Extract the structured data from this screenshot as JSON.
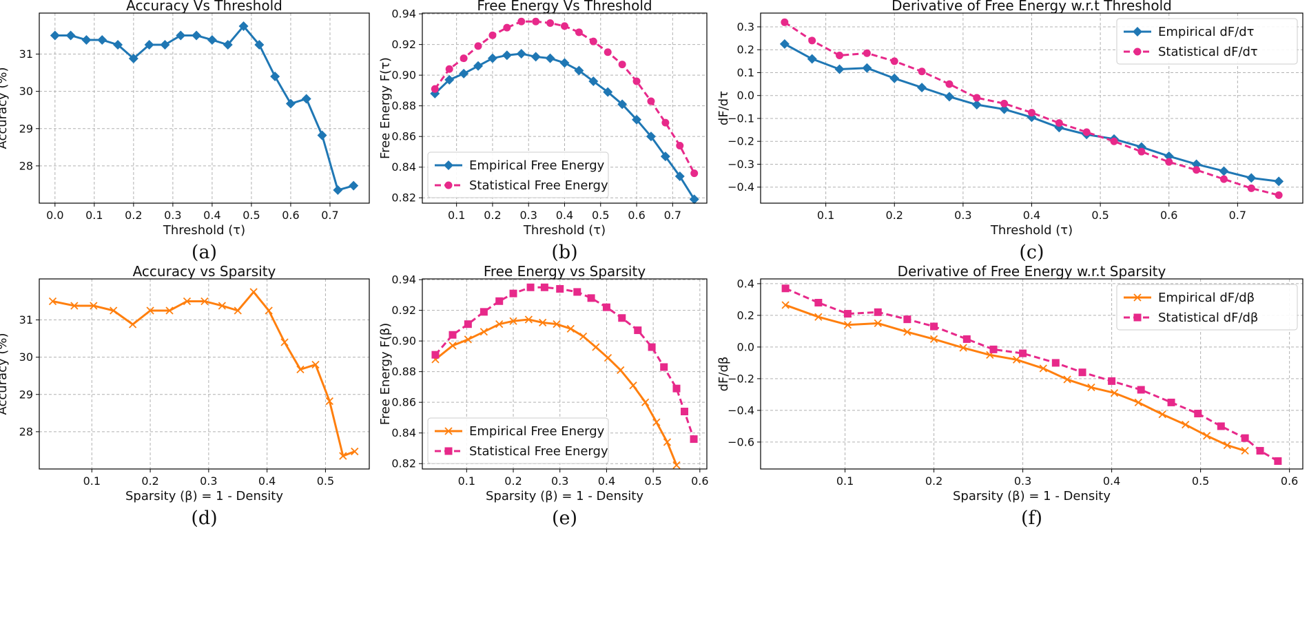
{
  "colors": {
    "blue": "#1f77b4",
    "orange": "#ff7f0e",
    "pink": "#e7298a"
  },
  "chart_data": [
    {
      "id": "a",
      "type": "line",
      "title": "Accuracy Vs Threshold",
      "xlabel": "Threshold (τ)",
      "ylabel": "Accuracy (%)",
      "sublabel": "(a)",
      "xlim": [
        -0.04,
        0.8
      ],
      "ylim": [
        27.0,
        32.1
      ],
      "xticks": [
        0.0,
        0.1,
        0.2,
        0.3,
        0.4,
        0.5,
        0.6,
        0.7
      ],
      "xtick_labels": [
        "0.0",
        "0.1",
        "0.2",
        "0.3",
        "0.4",
        "0.5",
        "0.6",
        "0.7"
      ],
      "yticks": [
        28,
        29,
        30,
        31
      ],
      "ytick_labels": [
        "28",
        "29",
        "30",
        "31"
      ],
      "legend": null,
      "series": [
        {
          "name": "Accuracy",
          "color": "blue",
          "dash": false,
          "marker": "diamond",
          "x": [
            0.0,
            0.04,
            0.08,
            0.12,
            0.16,
            0.2,
            0.24,
            0.28,
            0.32,
            0.36,
            0.4,
            0.44,
            0.48,
            0.52,
            0.56,
            0.6,
            0.64,
            0.68,
            0.72,
            0.76
          ],
          "y": [
            31.5,
            31.5,
            31.38,
            31.38,
            31.25,
            30.88,
            31.25,
            31.25,
            31.5,
            31.5,
            31.38,
            31.25,
            31.75,
            31.25,
            30.4,
            29.67,
            29.8,
            28.82,
            27.35,
            27.47
          ]
        }
      ]
    },
    {
      "id": "b",
      "type": "line",
      "title": "Free Energy Vs Threshold",
      "xlabel": "Threshold (τ)",
      "ylabel": "Free Energy F(τ)",
      "sublabel": "(b)",
      "xlim": [
        0.005,
        0.795
      ],
      "ylim": [
        0.8165,
        0.9405
      ],
      "xticks": [
        0.1,
        0.2,
        0.3,
        0.4,
        0.5,
        0.6,
        0.7
      ],
      "xtick_labels": [
        "0.1",
        "0.2",
        "0.3",
        "0.4",
        "0.5",
        "0.6",
        "0.7"
      ],
      "yticks": [
        0.82,
        0.84,
        0.86,
        0.88,
        0.9,
        0.92,
        0.94
      ],
      "ytick_labels": [
        "0.82",
        "0.84",
        "0.86",
        "0.88",
        "0.90",
        "0.92",
        "0.94"
      ],
      "legend": "lower-left",
      "series": [
        {
          "name": "Empirical Free Energy",
          "color": "blue",
          "dash": false,
          "marker": "diamond",
          "x": [
            0.04,
            0.08,
            0.12,
            0.16,
            0.2,
            0.24,
            0.28,
            0.32,
            0.36,
            0.4,
            0.44,
            0.48,
            0.52,
            0.56,
            0.6,
            0.64,
            0.68,
            0.72,
            0.76
          ],
          "y": [
            0.888,
            0.897,
            0.901,
            0.906,
            0.911,
            0.913,
            0.914,
            0.912,
            0.911,
            0.908,
            0.903,
            0.896,
            0.889,
            0.881,
            0.871,
            0.86,
            0.847,
            0.834,
            0.819
          ]
        },
        {
          "name": "Statistical Free Energy",
          "color": "pink",
          "dash": true,
          "marker": "circle",
          "x": [
            0.04,
            0.08,
            0.12,
            0.16,
            0.2,
            0.24,
            0.28,
            0.32,
            0.36,
            0.4,
            0.44,
            0.48,
            0.52,
            0.56,
            0.6,
            0.64,
            0.68,
            0.72,
            0.76
          ],
          "y": [
            0.891,
            0.904,
            0.911,
            0.919,
            0.926,
            0.931,
            0.935,
            0.935,
            0.934,
            0.932,
            0.928,
            0.922,
            0.915,
            0.907,
            0.896,
            0.883,
            0.869,
            0.854,
            0.836
          ]
        }
      ]
    },
    {
      "id": "c",
      "type": "line",
      "title": "Derivative of Free Energy w.r.t Threshold",
      "xlabel": "Threshold (τ)",
      "ylabel": "dF/dτ",
      "sublabel": "(c)",
      "xlim": [
        0.005,
        0.795
      ],
      "ylim": [
        -0.47,
        0.36
      ],
      "xticks": [
        0.1,
        0.2,
        0.3,
        0.4,
        0.5,
        0.6,
        0.7
      ],
      "xtick_labels": [
        "0.1",
        "0.2",
        "0.3",
        "0.4",
        "0.5",
        "0.6",
        "0.7"
      ],
      "yticks": [
        -0.4,
        -0.3,
        -0.2,
        -0.1,
        0.0,
        0.1,
        0.2,
        0.3
      ],
      "ytick_labels": [
        "−0.4",
        "−0.3",
        "−0.2",
        "−0.1",
        "0.0",
        "0.1",
        "0.2",
        "0.3"
      ],
      "legend": "top-right",
      "series": [
        {
          "name": "Empirical dF/dτ",
          "color": "blue",
          "dash": false,
          "marker": "diamond",
          "x": [
            0.04,
            0.08,
            0.12,
            0.16,
            0.2,
            0.24,
            0.28,
            0.32,
            0.36,
            0.4,
            0.44,
            0.48,
            0.52,
            0.56,
            0.6,
            0.64,
            0.68,
            0.72,
            0.76
          ],
          "y": [
            0.225,
            0.16,
            0.115,
            0.12,
            0.075,
            0.035,
            -0.005,
            -0.04,
            -0.06,
            -0.095,
            -0.14,
            -0.17,
            -0.19,
            -0.225,
            -0.265,
            -0.3,
            -0.33,
            -0.36,
            -0.375
          ]
        },
        {
          "name": "Statistical dF/dτ",
          "color": "pink",
          "dash": true,
          "marker": "circle",
          "x": [
            0.04,
            0.08,
            0.12,
            0.16,
            0.2,
            0.24,
            0.28,
            0.32,
            0.36,
            0.4,
            0.44,
            0.48,
            0.52,
            0.56,
            0.6,
            0.64,
            0.68,
            0.72,
            0.76
          ],
          "y": [
            0.32,
            0.24,
            0.175,
            0.185,
            0.15,
            0.105,
            0.05,
            -0.01,
            -0.035,
            -0.075,
            -0.12,
            -0.16,
            -0.2,
            -0.245,
            -0.29,
            -0.325,
            -0.365,
            -0.405,
            -0.435
          ]
        }
      ]
    },
    {
      "id": "d",
      "type": "line",
      "title": "Accuracy vs Sparsity",
      "xlabel": "Sparsity (β) = 1 - Density",
      "ylabel": "Accuracy (%)",
      "sublabel": "(d)",
      "xlim": [
        0.01,
        0.575
      ],
      "ylim": [
        27.0,
        32.1
      ],
      "xticks": [
        0.1,
        0.2,
        0.3,
        0.4,
        0.5
      ],
      "xtick_labels": [
        "0.1",
        "0.2",
        "0.3",
        "0.4",
        "0.5"
      ],
      "yticks": [
        28,
        29,
        30,
        31
      ],
      "ytick_labels": [
        "28",
        "29",
        "30",
        "31"
      ],
      "legend": null,
      "series": [
        {
          "name": "Accuracy",
          "color": "orange",
          "dash": false,
          "marker": "x",
          "x": [
            0.033,
            0.07,
            0.103,
            0.137,
            0.17,
            0.2,
            0.233,
            0.263,
            0.293,
            0.323,
            0.35,
            0.377,
            0.403,
            0.43,
            0.457,
            0.483,
            0.507,
            0.53,
            0.55
          ],
          "y": [
            31.5,
            31.38,
            31.38,
            31.25,
            30.88,
            31.25,
            31.25,
            31.5,
            31.5,
            31.38,
            31.25,
            31.75,
            31.25,
            30.4,
            29.67,
            29.8,
            28.82,
            27.35,
            27.47
          ]
        }
      ]
    },
    {
      "id": "e",
      "type": "line",
      "title": "Free Energy vs Sparsity",
      "xlabel": "Sparsity (β) = 1 - Density",
      "ylabel": "Free Energy F(β)",
      "sublabel": "(e)",
      "xlim": [
        0.005,
        0.615
      ],
      "ylim": [
        0.8165,
        0.9405
      ],
      "xticks": [
        0.1,
        0.2,
        0.3,
        0.4,
        0.5,
        0.6
      ],
      "xtick_labels": [
        "0.1",
        "0.2",
        "0.3",
        "0.4",
        "0.5",
        "0.6"
      ],
      "yticks": [
        0.82,
        0.84,
        0.86,
        0.88,
        0.9,
        0.92,
        0.94
      ],
      "ytick_labels": [
        "0.82",
        "0.84",
        "0.86",
        "0.88",
        "0.90",
        "0.92",
        "0.94"
      ],
      "legend": "lower-left",
      "series": [
        {
          "name": "Empirical Free Energy",
          "color": "orange",
          "dash": false,
          "marker": "x",
          "x": [
            0.033,
            0.07,
            0.103,
            0.137,
            0.17,
            0.2,
            0.233,
            0.263,
            0.293,
            0.323,
            0.35,
            0.377,
            0.403,
            0.43,
            0.457,
            0.483,
            0.507,
            0.53,
            0.55
          ],
          "y": [
            0.888,
            0.897,
            0.901,
            0.906,
            0.911,
            0.913,
            0.914,
            0.912,
            0.911,
            0.908,
            0.903,
            0.896,
            0.889,
            0.881,
            0.871,
            0.86,
            0.847,
            0.834,
            0.819
          ]
        },
        {
          "name": "Statistical Free Energy",
          "color": "pink",
          "dash": true,
          "marker": "square",
          "x": [
            0.033,
            0.07,
            0.103,
            0.137,
            0.17,
            0.2,
            0.237,
            0.267,
            0.3,
            0.337,
            0.367,
            0.4,
            0.433,
            0.467,
            0.497,
            0.523,
            0.55,
            0.567,
            0.587
          ],
          "y": [
            0.891,
            0.904,
            0.911,
            0.919,
            0.926,
            0.931,
            0.935,
            0.935,
            0.934,
            0.932,
            0.928,
            0.922,
            0.915,
            0.907,
            0.896,
            0.883,
            0.869,
            0.854,
            0.836
          ]
        }
      ]
    },
    {
      "id": "f",
      "type": "line",
      "title": "Derivative of Free Energy w.r.t Sparsity",
      "xlabel": "Sparsity (β) = 1 - Density",
      "ylabel": "dF/dβ",
      "sublabel": "(f)",
      "xlim": [
        0.005,
        0.615
      ],
      "ylim": [
        -0.77,
        0.43
      ],
      "xticks": [
        0.1,
        0.2,
        0.3,
        0.4,
        0.5,
        0.6
      ],
      "xtick_labels": [
        "0.1",
        "0.2",
        "0.3",
        "0.4",
        "0.5",
        "0.6"
      ],
      "yticks": [
        -0.6,
        -0.4,
        -0.2,
        0.0,
        0.2,
        0.4
      ],
      "ytick_labels": [
        "−0.6",
        "−0.4",
        "−0.2",
        "0.0",
        "0.2",
        "0.4"
      ],
      "legend": "top-right",
      "series": [
        {
          "name": "Empirical dF/dβ",
          "color": "orange",
          "dash": false,
          "marker": "x",
          "x": [
            0.033,
            0.07,
            0.103,
            0.137,
            0.17,
            0.2,
            0.233,
            0.263,
            0.293,
            0.323,
            0.35,
            0.377,
            0.403,
            0.43,
            0.457,
            0.483,
            0.507,
            0.53,
            0.55
          ],
          "y": [
            0.265,
            0.19,
            0.14,
            0.15,
            0.095,
            0.05,
            -0.005,
            -0.05,
            -0.08,
            -0.135,
            -0.205,
            -0.255,
            -0.29,
            -0.35,
            -0.425,
            -0.49,
            -0.56,
            -0.62,
            -0.655
          ]
        },
        {
          "name": "Statistical dF/dβ",
          "color": "pink",
          "dash": true,
          "marker": "square",
          "x": [
            0.033,
            0.07,
            0.103,
            0.137,
            0.17,
            0.2,
            0.237,
            0.267,
            0.3,
            0.337,
            0.367,
            0.4,
            0.433,
            0.467,
            0.497,
            0.523,
            0.55,
            0.567,
            0.587
          ],
          "y": [
            0.37,
            0.28,
            0.21,
            0.22,
            0.175,
            0.13,
            0.05,
            -0.015,
            -0.04,
            -0.1,
            -0.16,
            -0.215,
            -0.27,
            -0.35,
            -0.42,
            -0.5,
            -0.575,
            -0.655,
            -0.72
          ]
        }
      ]
    }
  ]
}
